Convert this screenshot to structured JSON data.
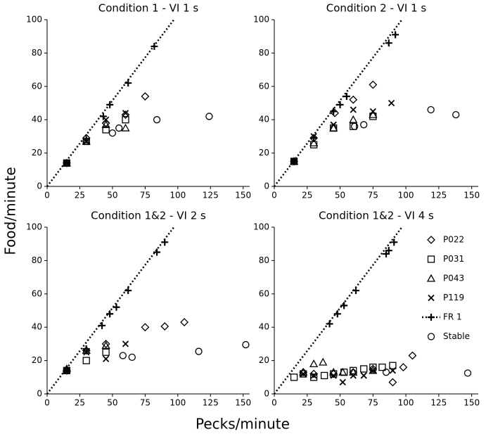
{
  "figure": {
    "xlabel": "Pecks/minute",
    "ylabel": "Food/minute"
  },
  "chart_data": [
    {
      "type": "scatter",
      "title": "Condition 1 - VI 1 s",
      "xlim": [
        0,
        155
      ],
      "ylim": [
        0,
        100
      ],
      "xticks": [
        0,
        25,
        50,
        75,
        100,
        125,
        150
      ],
      "yticks": [
        0,
        20,
        40,
        60,
        80,
        100
      ],
      "series": [
        {
          "name": "P022",
          "marker": "diamond",
          "color": "#000000",
          "x": [
            15,
            30,
            45,
            60,
            75
          ],
          "y": [
            14,
            29,
            38,
            43,
            54
          ]
        },
        {
          "name": "P031",
          "marker": "square",
          "color": "#000000",
          "x": [
            15,
            30,
            45,
            60
          ],
          "y": [
            14,
            27,
            34,
            40
          ]
        },
        {
          "name": "P043",
          "marker": "triangle",
          "color": "#000000",
          "x": [
            15,
            30,
            45,
            60
          ],
          "y": [
            14,
            27,
            37,
            35
          ]
        },
        {
          "name": "P119",
          "marker": "x",
          "color": "#000000",
          "x": [
            15,
            30,
            45,
            60
          ],
          "y": [
            14,
            27,
            40,
            44
          ]
        },
        {
          "name": "FR 1",
          "marker": "plus",
          "color": "#000000",
          "x": [
            15,
            30,
            43,
            48,
            62,
            82
          ],
          "y": [
            14,
            28,
            42,
            49,
            62,
            84
          ],
          "line": {
            "x": [
              0,
              97
            ],
            "y": [
              0,
              100
            ]
          }
        },
        {
          "name": "Stable",
          "marker": "circle",
          "color": "#000000",
          "x": [
            50,
            55,
            84,
            124
          ],
          "y": [
            32,
            35,
            40,
            42
          ]
        }
      ]
    },
    {
      "type": "scatter",
      "title": "Condition 2 - VI 1 s",
      "xlim": [
        0,
        155
      ],
      "ylim": [
        0,
        100
      ],
      "xticks": [
        0,
        25,
        50,
        75,
        100,
        125,
        150
      ],
      "yticks": [
        0,
        20,
        40,
        60,
        80,
        100
      ],
      "series": [
        {
          "name": "P022",
          "marker": "diamond",
          "color": "#000000",
          "x": [
            15,
            30,
            46,
            60,
            75
          ],
          "y": [
            15,
            29,
            44,
            52,
            61
          ]
        },
        {
          "name": "P031",
          "marker": "square",
          "color": "#000000",
          "x": [
            15,
            30,
            45,
            60,
            75
          ],
          "y": [
            15,
            25,
            35,
            36,
            42
          ]
        },
        {
          "name": "P043",
          "marker": "triangle",
          "color": "#000000",
          "x": [
            15,
            30,
            45,
            60,
            75
          ],
          "y": [
            15,
            26,
            35,
            40,
            43
          ]
        },
        {
          "name": "P119",
          "marker": "x",
          "color": "#000000",
          "x": [
            15,
            30,
            45,
            60,
            75,
            89
          ],
          "y": [
            15,
            30,
            37,
            46,
            45,
            50
          ]
        },
        {
          "name": "FR 1",
          "marker": "plus",
          "color": "#000000",
          "x": [
            15,
            30,
            45,
            50,
            55,
            87,
            92
          ],
          "y": [
            15,
            29,
            45,
            49,
            54,
            86,
            91
          ],
          "line": {
            "x": [
              0,
              97
            ],
            "y": [
              0,
              100
            ]
          }
        },
        {
          "name": "Stable",
          "marker": "circle",
          "color": "#000000",
          "x": [
            61,
            68,
            119,
            138
          ],
          "y": [
            36,
            37,
            46,
            43
          ]
        }
      ]
    },
    {
      "type": "scatter",
      "title": "Condition 1&2 - VI 2 s",
      "xlim": [
        0,
        155
      ],
      "ylim": [
        0,
        100
      ],
      "xticks": [
        0,
        25,
        50,
        75,
        100,
        125,
        150
      ],
      "yticks": [
        0,
        20,
        40,
        60,
        80,
        100
      ],
      "series": [
        {
          "name": "P022",
          "marker": "diamond",
          "color": "#000000",
          "x": [
            15,
            30,
            45,
            75,
            90,
            105
          ],
          "y": [
            14,
            26,
            30,
            40,
            40.5,
            43
          ]
        },
        {
          "name": "P031",
          "marker": "square",
          "color": "#000000",
          "x": [
            15,
            30,
            45
          ],
          "y": [
            14,
            20,
            25
          ]
        },
        {
          "name": "P043",
          "marker": "triangle",
          "color": "#000000",
          "x": [
            15,
            30,
            45
          ],
          "y": [
            15,
            26,
            29
          ]
        },
        {
          "name": "P119",
          "marker": "x",
          "color": "#000000",
          "x": [
            15,
            30,
            45,
            60
          ],
          "y": [
            14,
            25,
            21,
            30
          ]
        },
        {
          "name": "FR 1",
          "marker": "plus",
          "color": "#000000",
          "x": [
            15,
            30,
            42,
            48,
            53,
            62,
            84,
            90
          ],
          "y": [
            14,
            27,
            41,
            48,
            52,
            62,
            85,
            91
          ],
          "line": {
            "x": [
              0,
              97
            ],
            "y": [
              0,
              100
            ]
          }
        },
        {
          "name": "Stable",
          "marker": "circle",
          "color": "#000000",
          "x": [
            58,
            65,
            116,
            152
          ],
          "y": [
            23,
            22,
            25.5,
            29.5
          ]
        }
      ]
    },
    {
      "type": "scatter",
      "title": "Condition 1&2 - VI 4 s",
      "xlim": [
        0,
        155
      ],
      "ylim": [
        0,
        100
      ],
      "xticks": [
        0,
        25,
        50,
        75,
        100,
        125,
        150
      ],
      "yticks": [
        0,
        20,
        40,
        60,
        80,
        100
      ],
      "legend": "upper right",
      "series": [
        {
          "name": "P022",
          "marker": "diamond",
          "color": "#000000",
          "x": [
            22,
            30,
            45,
            60,
            75,
            90,
            98,
            105
          ],
          "y": [
            13,
            12,
            12,
            13,
            15,
            7,
            16,
            23
          ]
        },
        {
          "name": "P031",
          "marker": "square",
          "color": "#000000",
          "x": [
            15,
            22,
            30,
            38,
            45,
            53,
            60,
            68,
            75,
            82,
            90
          ],
          "y": [
            10,
            12,
            10,
            11,
            12,
            13,
            14,
            15,
            16,
            16,
            17
          ]
        },
        {
          "name": "P043",
          "marker": "triangle",
          "color": "#000000",
          "x": [
            22,
            30,
            37,
            45,
            52,
            60,
            75
          ],
          "y": [
            13,
            18,
            19,
            13,
            13,
            13,
            14
          ]
        },
        {
          "name": "P119",
          "marker": "x",
          "color": "#000000",
          "x": [
            22,
            30,
            45,
            52,
            60,
            68,
            75,
            90
          ],
          "y": [
            12,
            11,
            11,
            7,
            11,
            11,
            14,
            14
          ]
        },
        {
          "name": "FR 1",
          "marker": "plus",
          "color": "#000000",
          "x": [
            42,
            48,
            53,
            62,
            85,
            87,
            91
          ],
          "y": [
            42,
            48,
            53,
            62,
            84,
            86,
            91
          ],
          "line": {
            "x": [
              0,
              97
            ],
            "y": [
              0,
              100
            ]
          }
        },
        {
          "name": "Stable",
          "marker": "circle",
          "color": "#000000",
          "x": [
            85,
            147
          ],
          "y": [
            13,
            12.5
          ]
        }
      ]
    }
  ]
}
